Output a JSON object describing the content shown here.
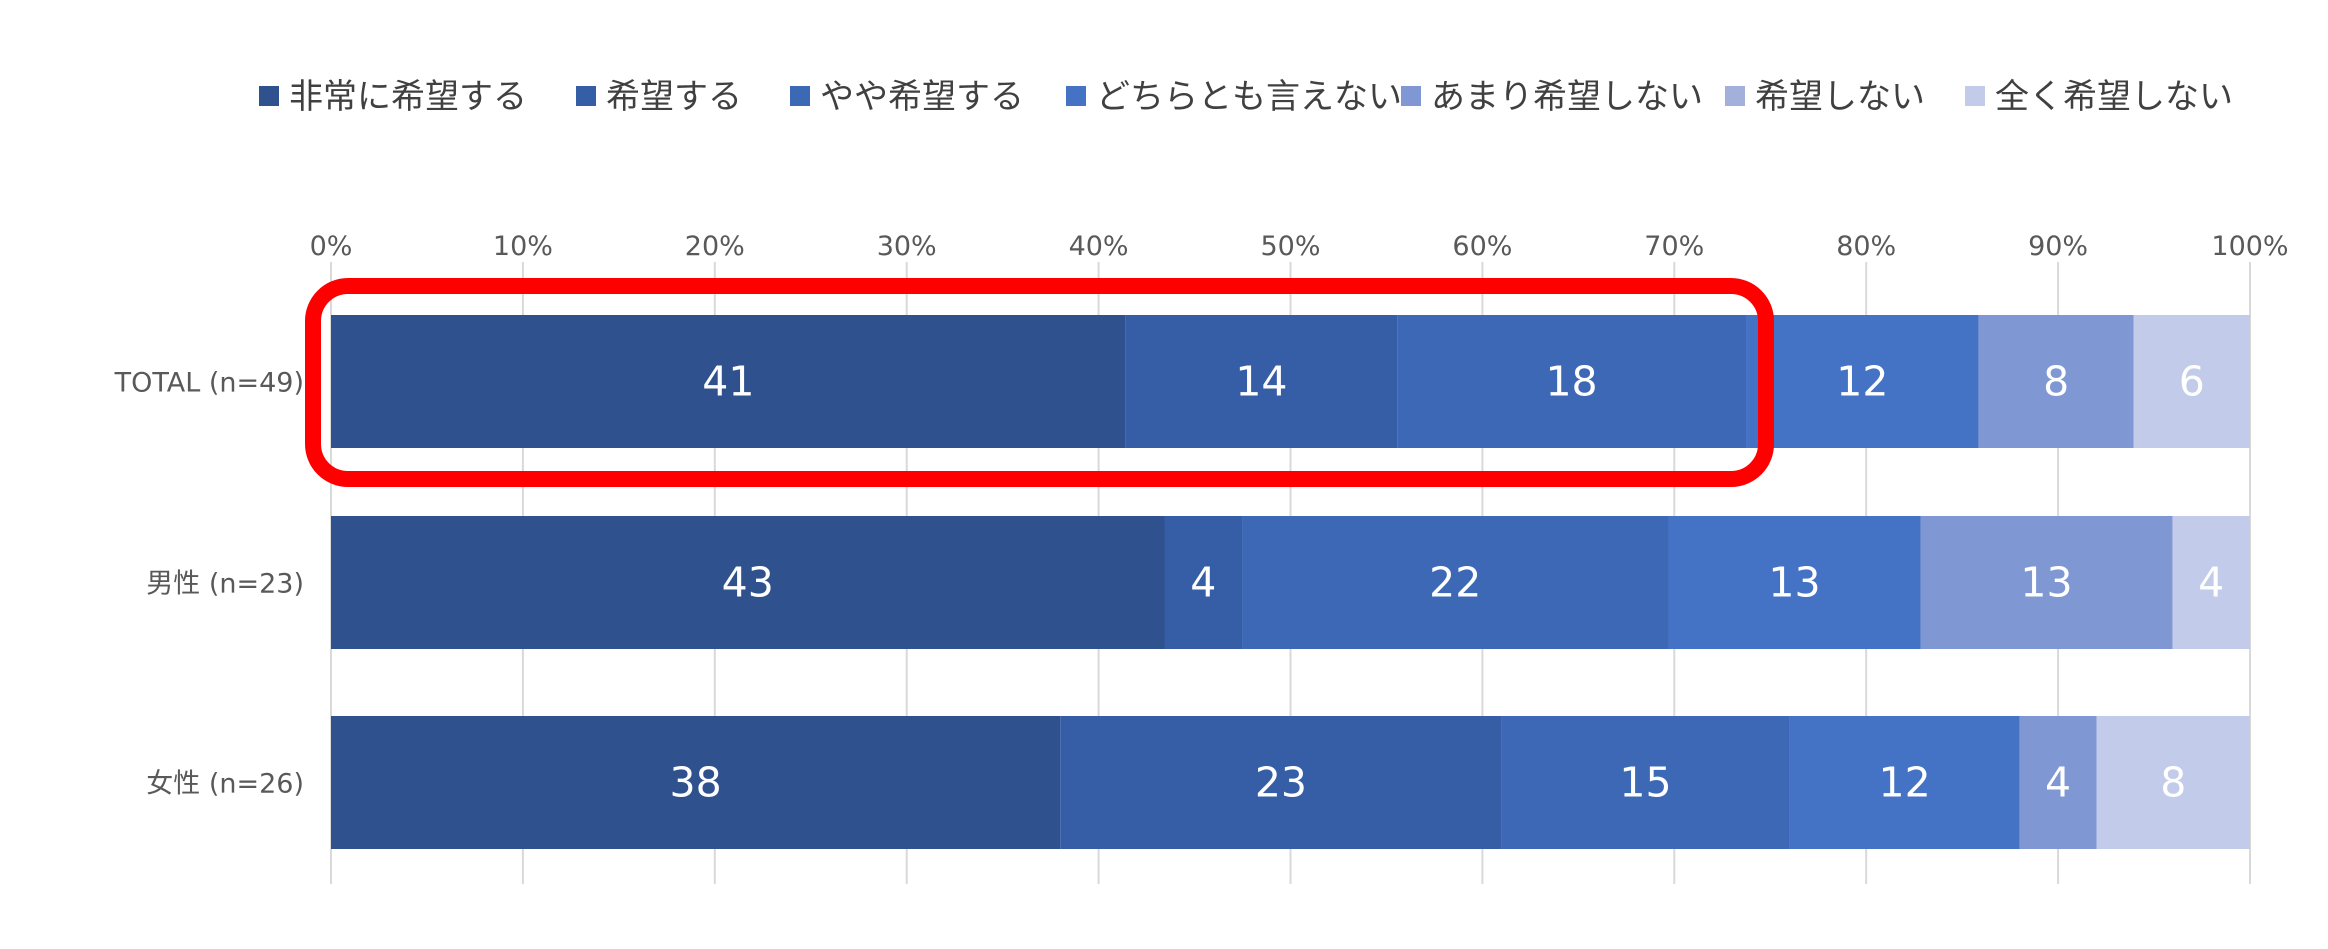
{
  "colors": {
    "series": [
      "#2f528f",
      "#365ea6",
      "#3d68b6",
      "#4472c4",
      "#7f97d2",
      "#a2b0db",
      "#c2cbe9"
    ],
    "grid": "#d9d9d9",
    "axis_text": "#595959",
    "bar_label": "#ffffff",
    "highlight": "#ff0000"
  },
  "chart_data": {
    "type": "bar",
    "orientation": "horizontal",
    "stacked": true,
    "stack_mode": "percent",
    "categories": [
      "TOTAL (n=49)",
      "男性 (n=23)",
      "女性 (n=26)"
    ],
    "series": [
      {
        "name": "非常に希望する",
        "values": [
          41,
          43,
          38
        ]
      },
      {
        "name": "希望する",
        "values": [
          14,
          4,
          23
        ]
      },
      {
        "name": "やや希望する",
        "values": [
          18,
          22,
          15
        ]
      },
      {
        "name": "どちらとも言えない",
        "values": [
          12,
          13,
          12
        ]
      },
      {
        "name": "あまり希望しない",
        "values": [
          8,
          13,
          4
        ]
      },
      {
        "name": "希望しない",
        "values": [
          0,
          0,
          0
        ]
      },
      {
        "name": "全く希望しない",
        "values": [
          6,
          4,
          8
        ]
      }
    ],
    "x_ticks": [
      "0%",
      "10%",
      "20%",
      "30%",
      "40%",
      "50%",
      "60%",
      "70%",
      "80%",
      "90%",
      "100%"
    ],
    "xlim": [
      0,
      100
    ],
    "grid": true,
    "legend_position": "top",
    "highlight": {
      "category_index": 0,
      "series_indices": [
        0,
        1,
        2
      ]
    }
  }
}
